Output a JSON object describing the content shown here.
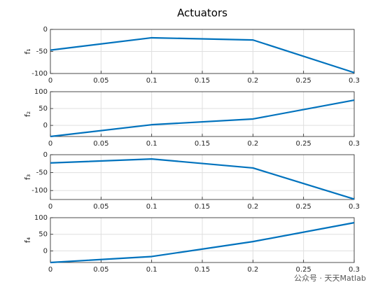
{
  "chart_data": [
    {
      "type": "line",
      "title": "Actuators",
      "ylabel": "f₁",
      "x": [
        0,
        0.1,
        0.2,
        0.3
      ],
      "series": [
        {
          "color": "#0072bd",
          "values": [
            -47,
            -19,
            -24,
            -98
          ]
        }
      ],
      "xlim": [
        0,
        0.3
      ],
      "xticks": [
        0,
        0.05,
        0.1,
        0.15,
        0.2,
        0.25,
        0.3
      ],
      "ylim": [
        -100,
        0
      ],
      "yticks": [
        -100,
        -50,
        0
      ],
      "grid": true
    },
    {
      "type": "line",
      "ylabel": "f₂",
      "x": [
        0,
        0.1,
        0.2,
        0.3
      ],
      "series": [
        {
          "color": "#0072bd",
          "values": [
            -33,
            2,
            19,
            75
          ]
        }
      ],
      "xlim": [
        0,
        0.3
      ],
      "xticks": [
        0,
        0.05,
        0.1,
        0.15,
        0.2,
        0.25,
        0.3
      ],
      "ylim": [
        -33,
        100
      ],
      "yticks": [
        0,
        50,
        100
      ],
      "grid": true
    },
    {
      "type": "line",
      "ylabel": "f₃",
      "x": [
        0,
        0.1,
        0.2,
        0.3
      ],
      "series": [
        {
          "color": "#0072bd",
          "values": [
            -23,
            -12,
            -37,
            -124
          ]
        }
      ],
      "xlim": [
        0,
        0.3
      ],
      "xticks": [
        0,
        0.05,
        0.1,
        0.15,
        0.2,
        0.25,
        0.3
      ],
      "ylim": [
        -125,
        0
      ],
      "yticks": [
        -100,
        -50,
        0
      ],
      "grid": true
    },
    {
      "type": "line",
      "ylabel": "f₄",
      "x": [
        0,
        0.1,
        0.2,
        0.3
      ],
      "series": [
        {
          "color": "#0072bd",
          "values": [
            -35,
            -17,
            28,
            85
          ]
        }
      ],
      "xlim": [
        0,
        0.3
      ],
      "xticks": [
        0,
        0.05,
        0.1,
        0.15,
        0.2,
        0.25,
        0.3
      ],
      "ylim": [
        -35,
        100
      ],
      "yticks": [
        0,
        50,
        100
      ],
      "grid": true
    }
  ],
  "watermark": "公众号 · 天天Matlab"
}
